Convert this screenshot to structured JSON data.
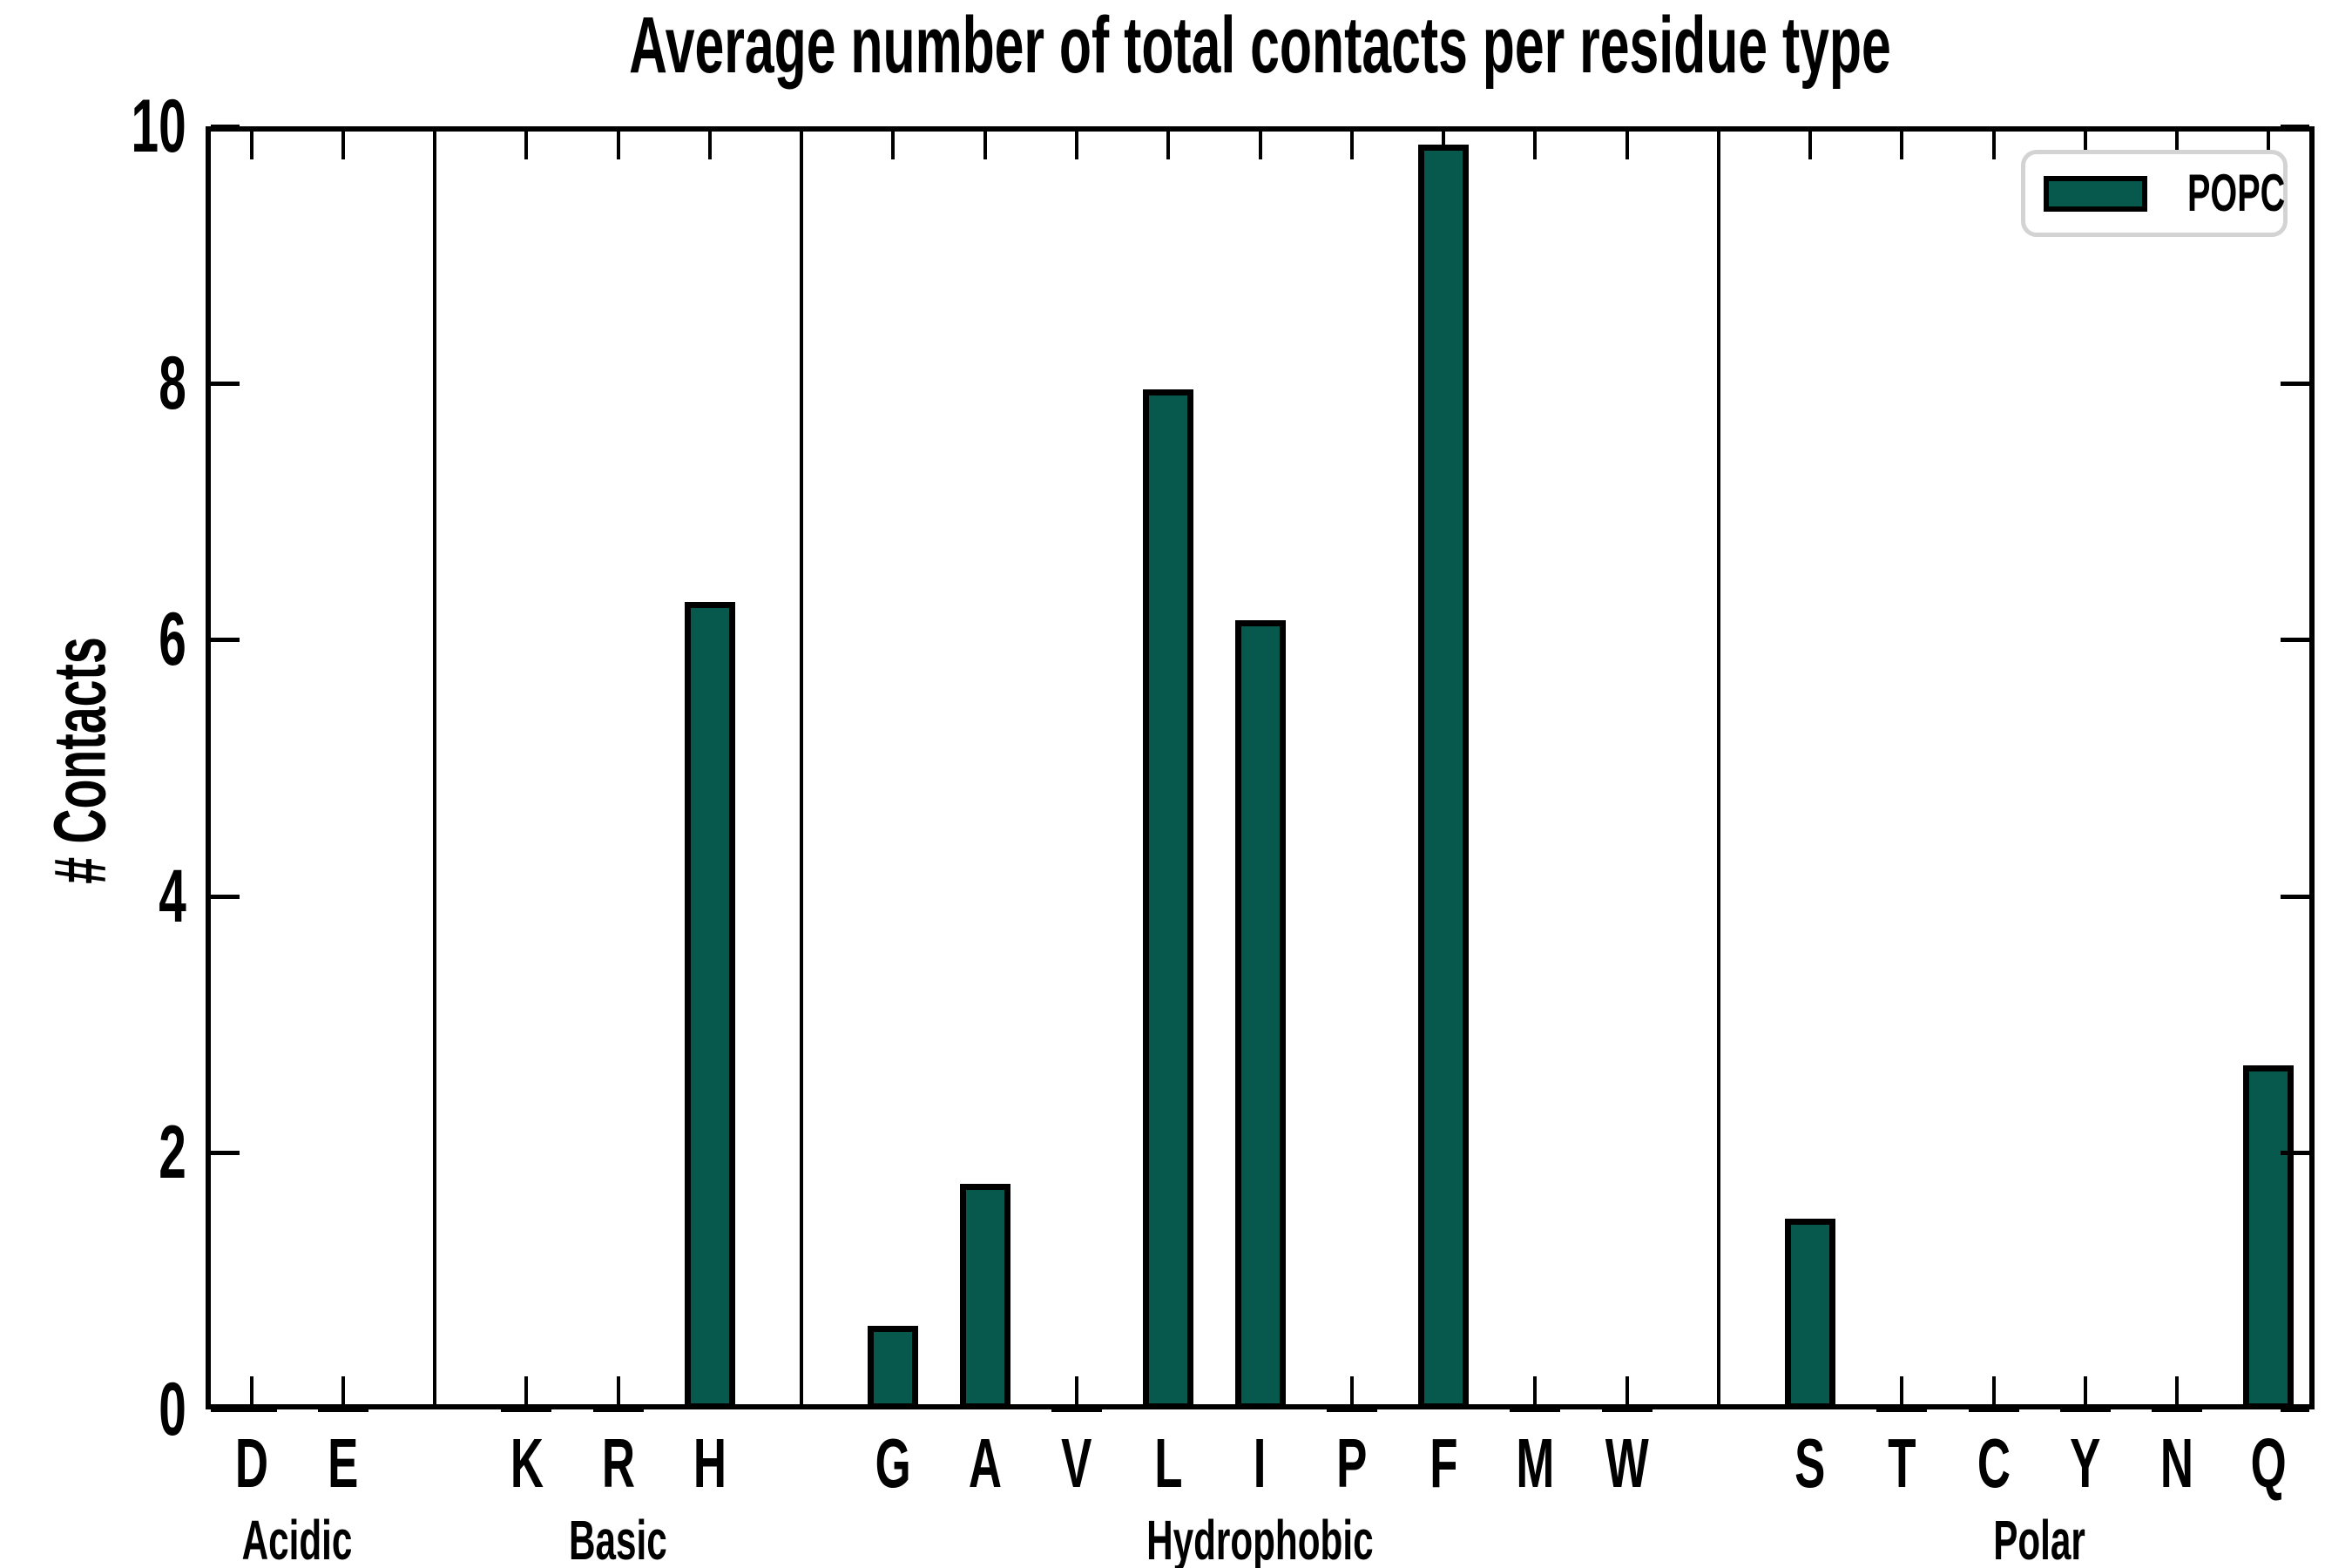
{
  "figure": {
    "background": "#ffffff",
    "axis_color": "#000000",
    "separator_color": "#000000",
    "legend_border_color": "#d3d3d3"
  },
  "chart_data": {
    "type": "bar",
    "title": "Average number of total contacts per residue type",
    "xlabel": "",
    "ylabel": "# Contacts",
    "ylim": [
      0,
      10
    ],
    "yticks": [
      0,
      2,
      4,
      6,
      8,
      10
    ],
    "grid": false,
    "legend_position": "upper right",
    "series": [
      {
        "name": "POPC",
        "color": "#07594e",
        "edge_color": "#000000"
      }
    ],
    "groups": [
      {
        "label": "Acidic",
        "categories": [
          "D",
          "E"
        ],
        "values": [
          0,
          0
        ]
      },
      {
        "label": "Basic",
        "categories": [
          "K",
          "R",
          "H"
        ],
        "values": [
          0,
          0,
          6.29
        ]
      },
      {
        "label": "Hydrophobic",
        "categories": [
          "G",
          "A",
          "V",
          "L",
          "I",
          "P",
          "F",
          "M",
          "W"
        ],
        "values": [
          0.65,
          1.76,
          0,
          7.95,
          6.15,
          0,
          9.86,
          0,
          0
        ]
      },
      {
        "label": "Polar",
        "categories": [
          "S",
          "T",
          "C",
          "Y",
          "N",
          "Q"
        ],
        "values": [
          1.49,
          0,
          0,
          0,
          0,
          2.68
        ]
      }
    ]
  }
}
